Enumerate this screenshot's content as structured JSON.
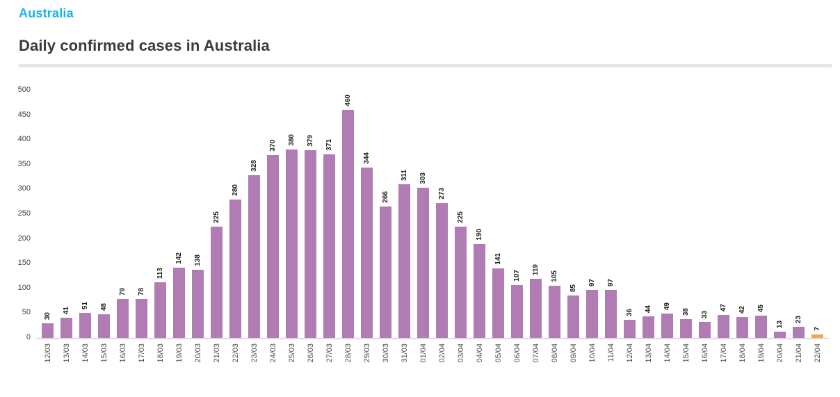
{
  "header": {
    "country": "Australia",
    "title": "Daily confirmed cases in Australia"
  },
  "colors": {
    "accent": "#14b4ec",
    "bar_default": "#b17cb3",
    "bar_highlight": "#f6a44d",
    "axis_line": "#dcdcdc",
    "divider": "#e6e6e6",
    "title_text": "#3b3b3b",
    "value_label_text": "#1f1f1f",
    "tick_label_text": "#4d4d4d"
  },
  "chart_data": {
    "type": "bar",
    "title": "Daily confirmed cases in Australia",
    "categories": [
      "12/03",
      "13/03",
      "14/03",
      "15/03",
      "16/03",
      "17/03",
      "18/03",
      "19/03",
      "20/03",
      "21/03",
      "22/03",
      "23/03",
      "24/03",
      "25/03",
      "26/03",
      "27/03",
      "28/03",
      "29/03",
      "30/03",
      "31/03",
      "01/04",
      "02/04",
      "03/04",
      "04/04",
      "05/04",
      "06/04",
      "07/04",
      "08/04",
      "09/04",
      "10/04",
      "11/04",
      "12/04",
      "13/04",
      "14/04",
      "15/04",
      "16/04",
      "17/04",
      "18/04",
      "19/04",
      "20/04",
      "21/04",
      "22/04"
    ],
    "values": [
      30,
      41,
      51,
      48,
      79,
      78,
      113,
      142,
      138,
      225,
      280,
      328,
      370,
      380,
      379,
      371,
      460,
      344,
      266,
      311,
      303,
      273,
      225,
      190,
      141,
      107,
      119,
      105,
      85,
      97,
      97,
      36,
      44,
      49,
      38,
      33,
      47,
      42,
      45,
      13,
      23,
      7
    ],
    "highlight_index": 41,
    "bar_colors": {
      "default": "#b17cb3",
      "highlight": "#f6a44d"
    },
    "xlabel": "",
    "ylabel": "",
    "ylim": [
      0,
      500
    ],
    "yticks": [
      0,
      50,
      100,
      150,
      200,
      250,
      300,
      350,
      400,
      450,
      500
    ],
    "grid": false,
    "legend": false,
    "value_label_rotation": -90,
    "xtick_rotation": -90
  }
}
